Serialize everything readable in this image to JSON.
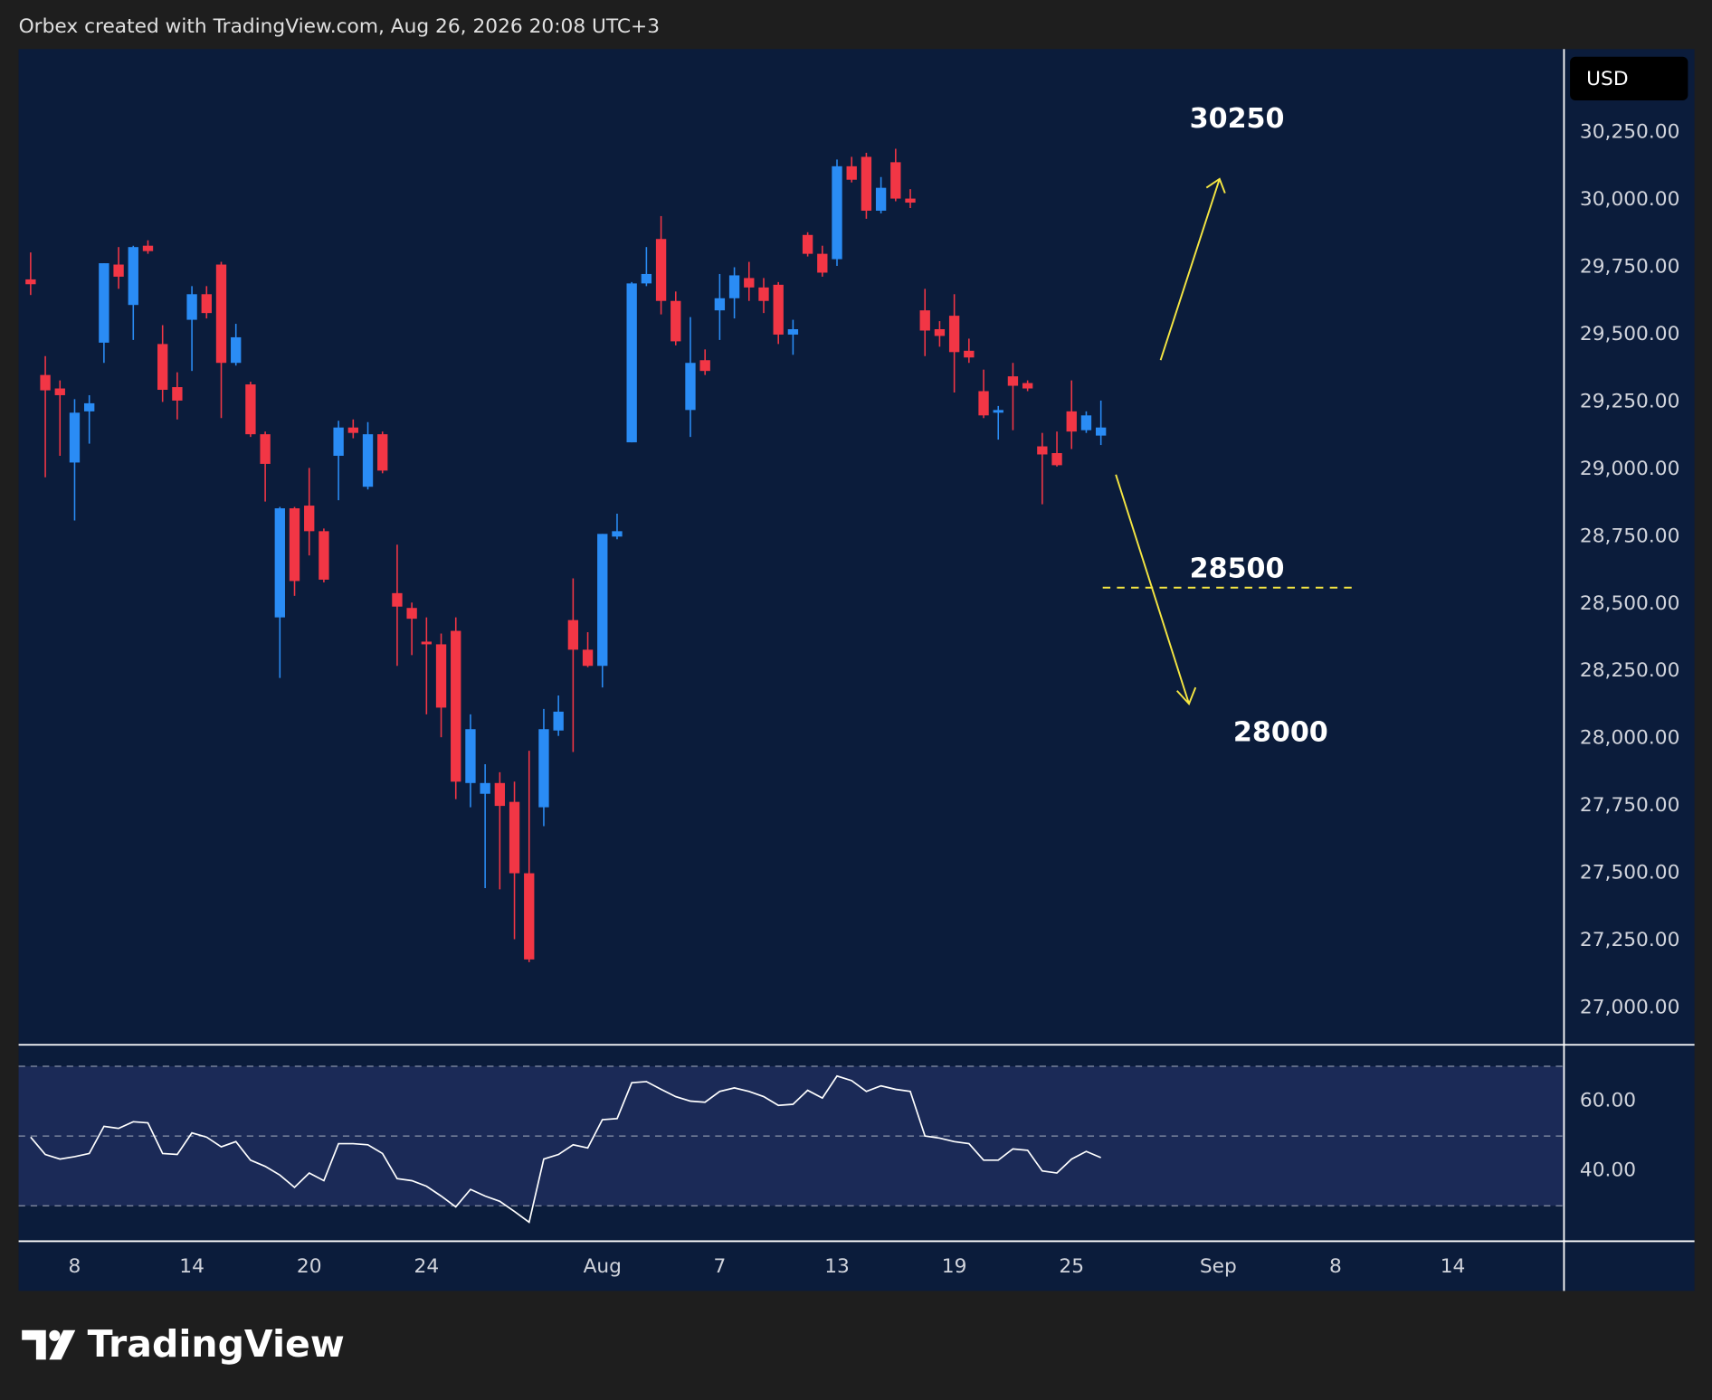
{
  "header": {
    "text": "Orbex created with TradingView.com, Aug 26, 2026 20:08 UTC+3"
  },
  "footer": {
    "logo": "TradingView"
  },
  "chart_data": [
    {
      "type": "candlestick",
      "currency": "USD",
      "up_color": "#2a8cf5",
      "down_color": "#f23645",
      "annotations": [
        "30250",
        "28500",
        "28000"
      ],
      "xlim": [
        -0.82,
        104.55
      ],
      "xticks": [
        {
          "value": 3,
          "label": "8"
        },
        {
          "value": 11,
          "label": "14"
        },
        {
          "value": 19,
          "label": "20"
        },
        {
          "value": 27,
          "label": "24"
        },
        {
          "value": 39,
          "label": "Aug"
        },
        {
          "value": 47,
          "label": "7"
        },
        {
          "value": 55,
          "label": "13"
        },
        {
          "value": 63,
          "label": "19"
        },
        {
          "value": 71,
          "label": "25"
        },
        {
          "value": 81,
          "label": "Sep"
        },
        {
          "value": 89,
          "label": "8"
        },
        {
          "value": 97,
          "label": "14"
        }
      ],
      "ylim": [
        26865,
        30560
      ],
      "yticks": [
        {
          "value": 30250,
          "label": "30,250.00"
        },
        {
          "value": 30000,
          "label": "30,000.00"
        },
        {
          "value": 29750,
          "label": "29,750.00"
        },
        {
          "value": 29500,
          "label": "29,500.00"
        },
        {
          "value": 29250,
          "label": "29,250.00"
        },
        {
          "value": 29000,
          "label": "29,000.00"
        },
        {
          "value": 28750,
          "label": "28,750.00"
        },
        {
          "value": 28500,
          "label": "28,500.00"
        },
        {
          "value": 28250,
          "label": "28,250.00"
        },
        {
          "value": 28000,
          "label": "28,000.00"
        },
        {
          "value": 27750,
          "label": "27,750.00"
        },
        {
          "value": 27500,
          "label": "27,500.00"
        },
        {
          "value": 27250,
          "label": "27,250.00"
        },
        {
          "value": 27000,
          "label": "27,000.00"
        }
      ],
      "open": [
        29705,
        29350,
        29300,
        29025,
        29215,
        29470,
        29760,
        29610,
        29830,
        29465,
        29305,
        29555,
        29650,
        29760,
        29395,
        29315,
        29130,
        28450,
        28855,
        28865,
        28770,
        29050,
        29155,
        28935,
        29130,
        28540,
        28485,
        28360,
        28350,
        28400,
        27835,
        27795,
        27835,
        27765,
        27500,
        27745,
        28030,
        28440,
        28330,
        28270,
        28750,
        29100,
        29690,
        29855,
        29625,
        29220,
        29405,
        29590,
        29635,
        29710,
        29675,
        29685,
        29500,
        29870,
        29800,
        29780,
        30125,
        30160,
        29960,
        30140,
        30005,
        29590,
        29520,
        29570,
        29440,
        29290,
        29210,
        29345,
        29320,
        29085,
        29060,
        29215,
        29145,
        29125
      ],
      "high": [
        29805,
        29420,
        29330,
        29260,
        29275,
        29765,
        29825,
        29830,
        29850,
        29535,
        29360,
        29680,
        29680,
        29770,
        29540,
        29325,
        29140,
        28860,
        28860,
        29005,
        28780,
        29180,
        29185,
        29175,
        29140,
        28720,
        28505,
        28450,
        28390,
        28450,
        28090,
        27905,
        27875,
        27840,
        27955,
        28110,
        28160,
        28595,
        28395,
        28760,
        28835,
        29695,
        29825,
        29940,
        29660,
        29565,
        29445,
        29725,
        29750,
        29770,
        29710,
        29695,
        29555,
        29880,
        29830,
        30150,
        30160,
        30175,
        30085,
        30190,
        30040,
        29670,
        29550,
        29650,
        29485,
        29370,
        29235,
        29395,
        29330,
        29135,
        29140,
        29330,
        29215,
        29255
      ],
      "low": [
        29647,
        28970,
        29050,
        28810,
        29095,
        29395,
        29670,
        29480,
        29800,
        29250,
        29185,
        29365,
        29560,
        29190,
        29385,
        29120,
        28880,
        28225,
        28530,
        28680,
        28580,
        28885,
        29115,
        28925,
        28985,
        28270,
        28310,
        28090,
        28005,
        27775,
        27745,
        27445,
        27440,
        27255,
        27170,
        27675,
        28010,
        27950,
        28265,
        28190,
        28740,
        29100,
        29680,
        29575,
        29460,
        29120,
        29350,
        29480,
        29560,
        29625,
        29580,
        29465,
        29425,
        29790,
        29715,
        29755,
        30065,
        29930,
        29950,
        29995,
        29970,
        29420,
        29455,
        29285,
        29395,
        29190,
        29110,
        29145,
        29290,
        28870,
        29010,
        29075,
        29135,
        29090
      ],
      "close": [
        29687,
        29293,
        29275,
        29210,
        29245,
        29765,
        29715,
        29825,
        29810,
        29295,
        29255,
        29650,
        29580,
        29395,
        29490,
        29130,
        29020,
        28855,
        28585,
        28770,
        28590,
        29155,
        29135,
        29130,
        28995,
        28490,
        28445,
        28350,
        28115,
        27840,
        28035,
        27835,
        27750,
        27500,
        27180,
        28035,
        28100,
        28330,
        28270,
        28760,
        28770,
        29690,
        29725,
        29625,
        29475,
        29395,
        29365,
        29635,
        29720,
        29675,
        29625,
        29500,
        29520,
        29800,
        29730,
        30125,
        30075,
        29960,
        30045,
        30005,
        29990,
        29515,
        29495,
        29435,
        29415,
        29200,
        29220,
        29310,
        29300,
        29055,
        29015,
        29140,
        29200,
        29155
      ]
    },
    {
      "type": "line",
      "color": "#ffffff",
      "band_color": "#1b2a57",
      "ylim": [
        20,
        76
      ],
      "levels": [
        70,
        50,
        30
      ],
      "yticks": [
        {
          "value": 60,
          "label": "60.00"
        },
        {
          "value": 40,
          "label": "40.00"
        }
      ],
      "values": [
        49.7,
        44.7,
        43.4,
        44.1,
        45,
        52.8,
        52.2,
        54.1,
        53.8,
        45,
        44.7,
        50.9,
        49.7,
        46.9,
        48.4,
        43.1,
        41.3,
        38.8,
        35.3,
        39.4,
        37.2,
        47.8,
        47.8,
        47.5,
        45,
        37.8,
        37.2,
        35.6,
        32.8,
        29.7,
        34.7,
        32.8,
        31.3,
        28.4,
        25.3,
        43.4,
        44.7,
        47.5,
        46.6,
        54.7,
        55,
        65.3,
        65.6,
        63.4,
        61.3,
        60,
        59.7,
        62.8,
        63.8,
        62.8,
        61.3,
        58.8,
        59.1,
        63.1,
        60.9,
        67.2,
        65.9,
        62.8,
        64.4,
        63.4,
        62.8,
        50,
        49.4,
        48.4,
        47.8,
        43.1,
        43.1,
        46.3,
        45.9,
        40,
        39.4,
        43.4,
        45.6,
        43.8
      ]
    }
  ]
}
